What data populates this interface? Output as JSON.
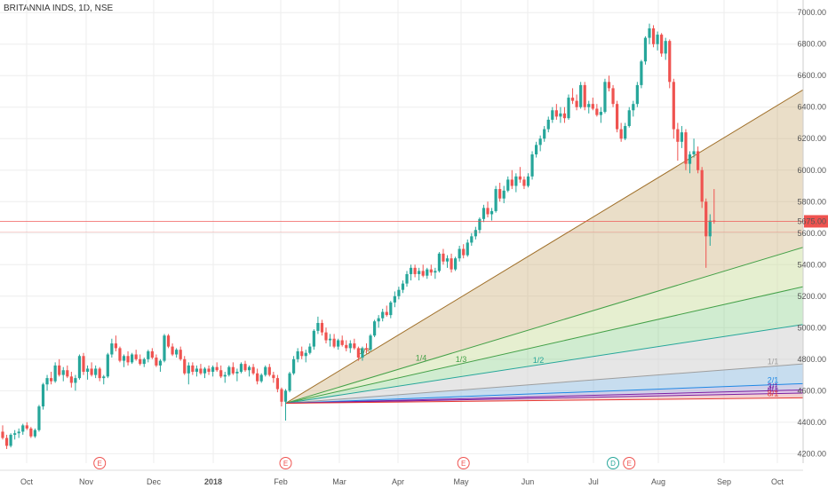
{
  "chart_title": "BRITANNIA INDS, 1D, NSE",
  "last_price_label": "5675.00",
  "colors": {
    "up": "#26a69a",
    "down": "#ef5350",
    "price_line": "#ef5350",
    "grid": "#eeeeee",
    "fan_top": "#a0702a",
    "fan_green": "#43a047",
    "fan_teal": "#26a69a",
    "fan_gray": "#9e9e9e",
    "fan_blue": "#1e88e5",
    "fan_purple": "#7b1fa2",
    "fan_red": "#e53935"
  },
  "chart_data": {
    "type": "candlestick",
    "title": "BRITANNIA INDS, 1D, NSE",
    "y_ticks": [
      4200,
      4400,
      4600,
      4800,
      5000,
      5200,
      5400,
      5600,
      5800,
      6000,
      6200,
      6400,
      6600,
      6800,
      7000
    ],
    "ylim": [
      4140,
      7080
    ],
    "x_labels": [
      "Oct",
      "Nov",
      "Dec",
      "2018",
      "Feb",
      "Mar",
      "Apr",
      "May",
      "Jun",
      "Jul",
      "Aug",
      "Sep",
      "Oct"
    ],
    "grid": true,
    "last_price": 5675,
    "candles": [
      [
        4340,
        4380,
        4290,
        4300
      ],
      [
        4300,
        4320,
        4230,
        4250
      ],
      [
        4250,
        4330,
        4240,
        4320
      ],
      [
        4320,
        4350,
        4290,
        4330
      ],
      [
        4330,
        4360,
        4300,
        4340
      ],
      [
        4340,
        4390,
        4320,
        4380
      ],
      [
        4380,
        4400,
        4350,
        4360
      ],
      [
        4360,
        4370,
        4300,
        4310
      ],
      [
        4310,
        4360,
        4300,
        4350
      ],
      [
        4350,
        4510,
        4340,
        4500
      ],
      [
        4500,
        4650,
        4480,
        4640
      ],
      [
        4640,
        4700,
        4600,
        4680
      ],
      [
        4680,
        4720,
        4640,
        4660
      ],
      [
        4660,
        4780,
        4650,
        4760
      ],
      [
        4760,
        4800,
        4690,
        4700
      ],
      [
        4700,
        4750,
        4660,
        4730
      ],
      [
        4730,
        4760,
        4680,
        4690
      ],
      [
        4690,
        4720,
        4620,
        4650
      ],
      [
        4650,
        4700,
        4600,
        4680
      ],
      [
        4680,
        4830,
        4670,
        4820
      ],
      [
        4820,
        4840,
        4700,
        4720
      ],
      [
        4720,
        4760,
        4670,
        4740
      ],
      [
        4740,
        4780,
        4690,
        4700
      ],
      [
        4700,
        4760,
        4680,
        4740
      ],
      [
        4740,
        4750,
        4660,
        4680
      ],
      [
        4680,
        4700,
        4640,
        4690
      ],
      [
        4690,
        4840,
        4680,
        4830
      ],
      [
        4830,
        4930,
        4810,
        4900
      ],
      [
        4900,
        4950,
        4850,
        4870
      ],
      [
        4870,
        4880,
        4780,
        4790
      ],
      [
        4790,
        4830,
        4750,
        4820
      ],
      [
        4820,
        4850,
        4760,
        4780
      ],
      [
        4780,
        4840,
        4770,
        4830
      ],
      [
        4830,
        4860,
        4790,
        4800
      ],
      [
        4800,
        4830,
        4760,
        4770
      ],
      [
        4770,
        4810,
        4750,
        4800
      ],
      [
        4800,
        4860,
        4780,
        4850
      ],
      [
        4850,
        4870,
        4800,
        4810
      ],
      [
        4810,
        4830,
        4750,
        4760
      ],
      [
        4760,
        4800,
        4720,
        4790
      ],
      [
        4790,
        4960,
        4780,
        4950
      ],
      [
        4950,
        4960,
        4870,
        4880
      ],
      [
        4880,
        4900,
        4820,
        4830
      ],
      [
        4830,
        4870,
        4810,
        4860
      ],
      [
        4860,
        4880,
        4790,
        4800
      ],
      [
        4800,
        4820,
        4700,
        4710
      ],
      [
        4710,
        4780,
        4640,
        4760
      ],
      [
        4760,
        4780,
        4700,
        4720
      ],
      [
        4720,
        4760,
        4690,
        4740
      ],
      [
        4740,
        4770,
        4700,
        4710
      ],
      [
        4710,
        4750,
        4680,
        4740
      ],
      [
        4740,
        4760,
        4700,
        4720
      ],
      [
        4720,
        4760,
        4690,
        4750
      ],
      [
        4750,
        4780,
        4720,
        4730
      ],
      [
        4730,
        4760,
        4680,
        4690
      ],
      [
        4690,
        4720,
        4650,
        4700
      ],
      [
        4700,
        4760,
        4690,
        4750
      ],
      [
        4750,
        4780,
        4700,
        4710
      ],
      [
        4710,
        4740,
        4660,
        4720
      ],
      [
        4720,
        4780,
        4710,
        4770
      ],
      [
        4770,
        4790,
        4720,
        4730
      ],
      [
        4730,
        4760,
        4690,
        4750
      ],
      [
        4750,
        4770,
        4700,
        4710
      ],
      [
        4710,
        4740,
        4640,
        4660
      ],
      [
        4660,
        4710,
        4650,
        4700
      ],
      [
        4700,
        4760,
        4690,
        4750
      ],
      [
        4750,
        4770,
        4690,
        4700
      ],
      [
        4700,
        4720,
        4650,
        4680
      ],
      [
        4680,
        4700,
        4590,
        4610
      ],
      [
        4610,
        4620,
        4500,
        4530
      ],
      [
        4530,
        4610,
        4410,
        4600
      ],
      [
        4600,
        4720,
        4590,
        4710
      ],
      [
        4710,
        4820,
        4700,
        4800
      ],
      [
        4800,
        4870,
        4780,
        4850
      ],
      [
        4850,
        4880,
        4800,
        4820
      ],
      [
        4820,
        4860,
        4780,
        4840
      ],
      [
        4840,
        4900,
        4830,
        4880
      ],
      [
        4880,
        4990,
        4860,
        4980
      ],
      [
        4980,
        5070,
        4960,
        5030
      ],
      [
        5030,
        5050,
        4950,
        4970
      ],
      [
        4970,
        5000,
        4900,
        4920
      ],
      [
        4920,
        4960,
        4880,
        4930
      ],
      [
        4930,
        4960,
        4870,
        4880
      ],
      [
        4880,
        4930,
        4860,
        4920
      ],
      [
        4920,
        4950,
        4880,
        4890
      ],
      [
        4890,
        4920,
        4850,
        4870
      ],
      [
        4870,
        4920,
        4840,
        4900
      ],
      [
        4900,
        4930,
        4860,
        4870
      ],
      [
        4870,
        4880,
        4790,
        4810
      ],
      [
        4810,
        4880,
        4790,
        4870
      ],
      [
        4870,
        4900,
        4840,
        4860
      ],
      [
        4860,
        4960,
        4850,
        4950
      ],
      [
        4950,
        5050,
        4940,
        5040
      ],
      [
        5040,
        5080,
        5000,
        5060
      ],
      [
        5060,
        5120,
        5040,
        5100
      ],
      [
        5100,
        5140,
        5070,
        5080
      ],
      [
        5080,
        5170,
        5060,
        5160
      ],
      [
        5160,
        5230,
        5130,
        5200
      ],
      [
        5200,
        5260,
        5180,
        5240
      ],
      [
        5240,
        5300,
        5220,
        5280
      ],
      [
        5280,
        5360,
        5260,
        5340
      ],
      [
        5340,
        5400,
        5300,
        5380
      ],
      [
        5380,
        5400,
        5320,
        5340
      ],
      [
        5340,
        5380,
        5300,
        5360
      ],
      [
        5360,
        5400,
        5320,
        5330
      ],
      [
        5330,
        5380,
        5310,
        5370
      ],
      [
        5370,
        5400,
        5330,
        5350
      ],
      [
        5350,
        5380,
        5310,
        5360
      ],
      [
        5360,
        5480,
        5350,
        5470
      ],
      [
        5470,
        5500,
        5400,
        5420
      ],
      [
        5420,
        5460,
        5380,
        5440
      ],
      [
        5440,
        5470,
        5350,
        5370
      ],
      [
        5370,
        5450,
        5360,
        5440
      ],
      [
        5440,
        5520,
        5420,
        5500
      ],
      [
        5500,
        5530,
        5440,
        5460
      ],
      [
        5460,
        5560,
        5450,
        5540
      ],
      [
        5540,
        5600,
        5520,
        5580
      ],
      [
        5580,
        5640,
        5560,
        5620
      ],
      [
        5620,
        5700,
        5600,
        5690
      ],
      [
        5690,
        5780,
        5670,
        5760
      ],
      [
        5760,
        5800,
        5700,
        5720
      ],
      [
        5720,
        5760,
        5680,
        5740
      ],
      [
        5740,
        5900,
        5730,
        5880
      ],
      [
        5880,
        5920,
        5800,
        5820
      ],
      [
        5820,
        5900,
        5790,
        5870
      ],
      [
        5870,
        5960,
        5860,
        5940
      ],
      [
        5940,
        6000,
        5880,
        5900
      ],
      [
        5900,
        5980,
        5860,
        5960
      ],
      [
        5960,
        6020,
        5920,
        5940
      ],
      [
        5940,
        5960,
        5880,
        5900
      ],
      [
        5900,
        5980,
        5890,
        5960
      ],
      [
        5960,
        6120,
        5940,
        6100
      ],
      [
        6100,
        6180,
        6080,
        6160
      ],
      [
        6160,
        6220,
        6120,
        6200
      ],
      [
        6200,
        6280,
        6180,
        6260
      ],
      [
        6260,
        6340,
        6240,
        6320
      ],
      [
        6320,
        6400,
        6300,
        6380
      ],
      [
        6380,
        6420,
        6320,
        6340
      ],
      [
        6340,
        6400,
        6300,
        6360
      ],
      [
        6360,
        6400,
        6300,
        6330
      ],
      [
        6330,
        6480,
        6320,
        6460
      ],
      [
        6460,
        6520,
        6420,
        6440
      ],
      [
        6440,
        6480,
        6380,
        6400
      ],
      [
        6400,
        6560,
        6390,
        6540
      ],
      [
        6540,
        6560,
        6380,
        6400
      ],
      [
        6400,
        6440,
        6360,
        6420
      ],
      [
        6420,
        6460,
        6380,
        6390
      ],
      [
        6390,
        6420,
        6340,
        6350
      ],
      [
        6350,
        6400,
        6300,
        6370
      ],
      [
        6370,
        6580,
        6360,
        6560
      ],
      [
        6560,
        6600,
        6500,
        6520
      ],
      [
        6520,
        6540,
        6400,
        6420
      ],
      [
        6420,
        6440,
        6240,
        6260
      ],
      [
        6260,
        6300,
        6180,
        6200
      ],
      [
        6200,
        6300,
        6190,
        6280
      ],
      [
        6280,
        6400,
        6270,
        6380
      ],
      [
        6380,
        6440,
        6340,
        6420
      ],
      [
        6420,
        6560,
        6400,
        6540
      ],
      [
        6540,
        6700,
        6520,
        6690
      ],
      [
        6690,
        6850,
        6670,
        6840
      ],
      [
        6840,
        6930,
        6800,
        6900
      ],
      [
        6900,
        6920,
        6780,
        6800
      ],
      [
        6800,
        6880,
        6760,
        6860
      ],
      [
        6860,
        6870,
        6720,
        6740
      ],
      [
        6740,
        6840,
        6700,
        6820
      ],
      [
        6820,
        6830,
        6520,
        6560
      ],
      [
        6560,
        6580,
        6200,
        6260
      ],
      [
        6260,
        6300,
        6060,
        6180
      ],
      [
        6180,
        6280,
        6140,
        6240
      ],
      [
        6240,
        6260,
        6000,
        6040
      ],
      [
        6040,
        6120,
        5980,
        6100
      ],
      [
        6100,
        6200,
        6080,
        6120
      ],
      [
        6120,
        6150,
        5980,
        6000
      ],
      [
        6000,
        6020,
        5760,
        5800
      ],
      [
        5800,
        5820,
        5380,
        5580
      ],
      [
        5580,
        5720,
        5520,
        5680
      ],
      [
        5680,
        5880,
        5660,
        5675
      ]
    ],
    "fan": {
      "origin": {
        "index": 70,
        "price": 4520
      },
      "lines": [
        {
          "label": "1/8",
          "end_price": 6510,
          "color_key": "fan_top",
          "fill": "rgba(196,160,96,0.35)"
        },
        {
          "label": "1/4",
          "end_price": 5510,
          "color_key": "fan_green",
          "fill": "rgba(200,220,150,0.45)"
        },
        {
          "label": "1/3",
          "end_price": 5260,
          "color_key": "fan_green",
          "fill": "rgba(120,200,120,0.35)"
        },
        {
          "label": "1/2",
          "end_price": 5020,
          "color_key": "fan_teal",
          "fill": "rgba(200,200,200,0.45)"
        },
        {
          "label": "1/1",
          "end_price": 4770,
          "color_key": "fan_gray",
          "fill": "rgba(130,180,220,0.45)"
        },
        {
          "label": "2/1",
          "end_price": 4645,
          "color_key": "fan_blue",
          "fill": "rgba(140,140,200,0.4)"
        },
        {
          "label": "3/1",
          "end_price": 4605,
          "color_key": "fan_purple",
          "fill": "rgba(180,120,200,0.4)"
        },
        {
          "label": "4/1",
          "end_price": 4585,
          "color_key": "fan_purple",
          "fill": "rgba(220,120,120,0.35)"
        },
        {
          "label": "8/1",
          "end_price": 4555,
          "color_key": "fan_red",
          "fill": "none"
        }
      ]
    },
    "events": [
      {
        "label": "E",
        "index": 24
      },
      {
        "label": "E",
        "index": 70
      },
      {
        "label": "E",
        "index": 114
      },
      {
        "label": "D",
        "index": 151
      },
      {
        "label": "E",
        "index": 155
      }
    ]
  }
}
